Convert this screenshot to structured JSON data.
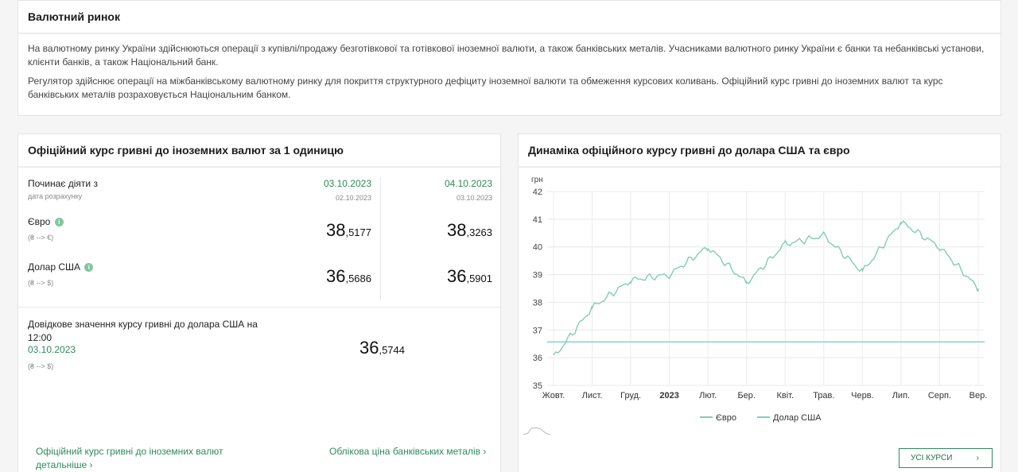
{
  "intro": {
    "title": "Валютний ринок",
    "p1": "На валютному ринку України здійснюються операції з купівлі/продажу безготівкової та готівкової іноземної валюти, а також банківських металів. Учасниками валютного ринку України є банки та небанківські установи, клієнти банків, а також Національний банк.",
    "p2": "Регулятор здійснює операції на міжбанківському валютному ринку для покриття структурного дефіциту іноземної валюти та обмеження курсових коливань. Офіційний курс гривні до іноземних валют та курс банківських металів розраховується Національним банком."
  },
  "rates": {
    "title": "Офіційний курс гривні до іноземних валют за 1 одиницю",
    "effective_label": "Починає діяти з",
    "calc_label": "дата розрахунку",
    "col1": {
      "date": "03.10.2023",
      "calc": "02.10.2023"
    },
    "col2": {
      "date": "04.10.2023",
      "calc": "03.10.2023"
    },
    "eur": {
      "label": "Євро",
      "dir": "(₴ --> €)",
      "v1_int": "38",
      "v1_dec": ",5177",
      "v2_int": "38",
      "v2_dec": ",3263"
    },
    "usd": {
      "label": "Долар США",
      "dir": "(₴ --> $)",
      "v1_int": "36",
      "v1_dec": ",5686",
      "v2_int": "36",
      "v2_dec": ",5901"
    },
    "ref": {
      "label_l1": "Довідкове значення курсу гривні до долара США на",
      "label_l2": "12:00",
      "date": "03.10.2023",
      "dir": "(₴ --> $)",
      "v_int": "36",
      "v_dec": ",5744"
    },
    "link1_l1": "Офіційний курс гривні до іноземних валют",
    "link1_l2": "детальніше ›",
    "link2": "Облікова ціна банківських металів ›"
  },
  "dyn": {
    "title": "Динаміка офіційного курсу гривні до долара США та євро",
    "button": "УСІ КУРСИ",
    "button_arrow": "›"
  },
  "chart_data": {
    "type": "line",
    "ylabel": "грн",
    "ylim": [
      35,
      42
    ],
    "yticks": [
      "35",
      "36",
      "37",
      "38",
      "39",
      "40",
      "41",
      "42"
    ],
    "xticks": [
      "Жовт.",
      "Лист.",
      "Груд.",
      "2023",
      "Лют.",
      "Бер.",
      "Квіт.",
      "Трав.",
      "Черв.",
      "Лип.",
      "Серп.",
      "Вер."
    ],
    "x": [
      "Жовт.",
      "Лист.",
      "Груд.",
      "2023",
      "Лют.",
      "Бер.",
      "Квіт.",
      "Трав.",
      "Черв.",
      "Лип.",
      "Серп.",
      "Вер."
    ],
    "series": [
      {
        "name": "Євро",
        "color": "#7fcfb0",
        "values": [
          36.0,
          37.8,
          38.8,
          39.0,
          40.0,
          38.7,
          40.1,
          40.4,
          39.1,
          40.9,
          40.0,
          38.5
        ]
      },
      {
        "name": "Долар США",
        "color": "#7fcfc6",
        "values": [
          36.5686,
          36.5686,
          36.5686,
          36.5686,
          36.5686,
          36.5686,
          36.5686,
          36.5686,
          36.5686,
          36.5686,
          36.5686,
          36.5686
        ]
      }
    ],
    "grid": true,
    "legend": "bottom"
  }
}
